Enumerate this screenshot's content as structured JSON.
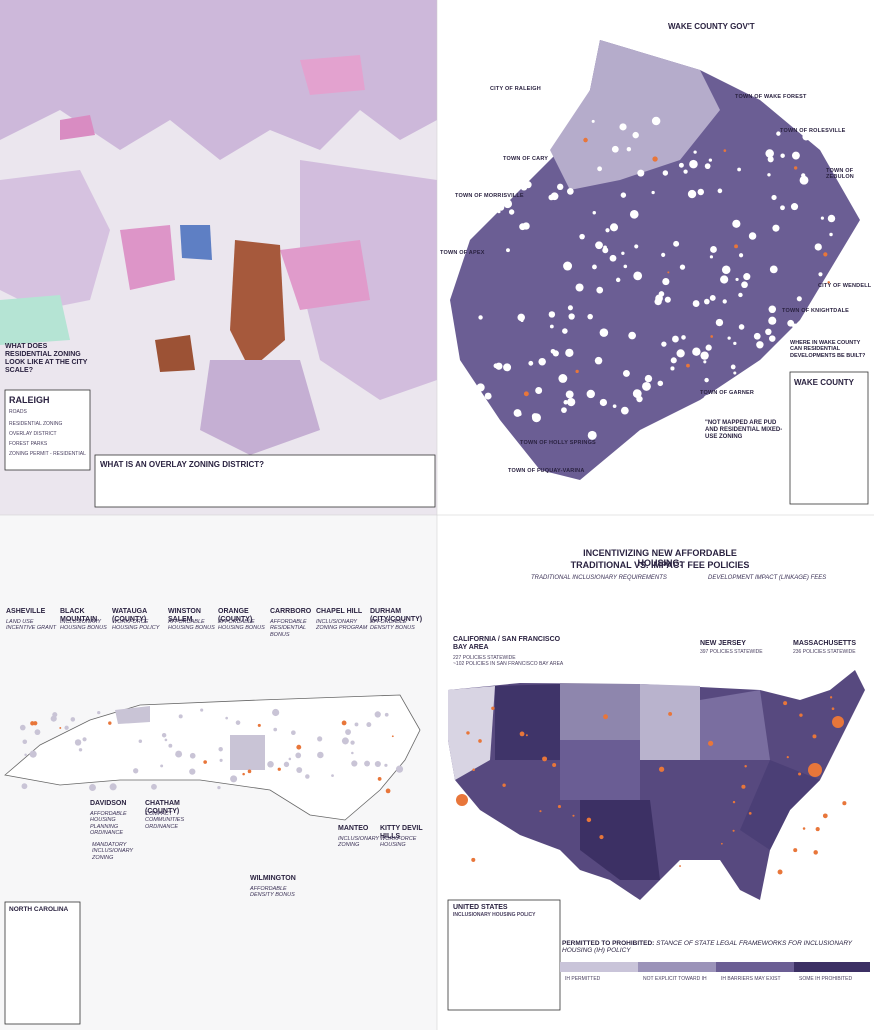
{
  "raleigh": {
    "question": "WHAT DOES RESIDENTIAL ZONING LOOK LIKE AT THE CITY SCALE?",
    "title": "RALEIGH",
    "legend": [
      "ROADS",
      "RESIDENTIAL ZONING",
      "OVERLAY DISTRICT",
      "FOREST PARKS",
      "ZONING PERMIT - RESIDENTIAL"
    ],
    "overlay_heading": "WHAT IS AN OVERLAY ZONING DISTRICT?"
  },
  "wake": {
    "heading": "WAKE COUNTY GOV'T",
    "towns": [
      "CITY OF RALEIGH",
      "TOWN OF WAKE FOREST",
      "TOWN OF ROLESVILLE",
      "TOWN OF ZEBULON",
      "TOWN OF CARY",
      "TOWN OF MORRISVILLE",
      "TOWN OF APEX",
      "CITY OF WENDELL",
      "TOWN OF KNIGHTDALE",
      "TOWN OF GARNER",
      "TOWN OF HOLLY SPRINGS",
      "TOWN OF FUQUAY-VARINA"
    ],
    "note": "\"NOT MAPPED ARE PUD AND RESIDENTIAL MIXED-USE ZONING",
    "question": "WHERE IN WAKE COUNTY CAN RESIDENTIAL DEVELOPMENTS BE BUILT?",
    "title": "WAKE COUNTY"
  },
  "north_carolina": {
    "places": [
      {
        "name": "ASHEVILLE",
        "policy": "LAND USE INCENTIVE GRANT"
      },
      {
        "name": "BLACK MOUNTAIN",
        "policy": "INCLUSIONARY HOUSING BONUS"
      },
      {
        "name": "WATAUGA (COUNTY)",
        "policy": "WORKFORCE HOUSING POLICY"
      },
      {
        "name": "WINSTON SALEM",
        "policy": "AFFORDABLE HOUSING BONUS"
      },
      {
        "name": "ORANGE (COUNTY)",
        "policy": "AFFORDABLE HOUSING BONUS"
      },
      {
        "name": "CARRBORO",
        "policy": "AFFORDABLE RESIDENTIAL BONUS"
      },
      {
        "name": "CHAPEL HILL",
        "policy": "INCLUSIONARY ZONING PROGRAM"
      },
      {
        "name": "DURHAM (CITY/COUNTY)",
        "policy": "AFFORDABLE DENSITY BONUS"
      },
      {
        "name": "DAVIDSON",
        "policy": "AFFORDABLE HOUSING PLANNING ORDINANCE"
      },
      {
        "name": "CHATHAM (COUNTY)",
        "policy": "COMPACT COMMUNITIES ORDINANCE"
      },
      {
        "name": "MANTEO",
        "policy": "INCLUSIONARY ZONING"
      },
      {
        "name": "KITTY DEVIL HILLS",
        "policy": "WORKFORCE HOUSING"
      },
      {
        "name": "WILMINGTON",
        "policy": "AFFORDABLE DENSITY BONUS"
      }
    ],
    "extra_policy": "MANDATORY INCLUSIONARY ZONING",
    "title": "NORTH CAROLINA"
  },
  "united_states": {
    "title": "INCENTIVIZING NEW AFFORDABLE HOUSING:",
    "subtitle": "TRADITIONAL VS. IMPACT FEE POLICIES",
    "traditional": "TRADITIONAL INCLUSIONARY REQUIREMENTS",
    "impact": "DEVELOPMENT IMPACT (LINKAGE) FEES",
    "california": {
      "name": "CALIFORNIA / SAN FRANCISCO BAY AREA",
      "lines": [
        "227 POLICIES STATEWIDE",
        "~102 POLICIES IN SAN FRANCISCO BAY AREA"
      ]
    },
    "new_jersey": {
      "name": "NEW JERSEY",
      "lines": [
        "397 POLICIES STATEWIDE"
      ]
    },
    "massachusetts": {
      "name": "MASSACHUSETTS",
      "lines": [
        "236 POLICIES STATEWIDE"
      ]
    },
    "legend_title": "UNITED STATES",
    "legend_subtitle": "INCLUSIONARY HOUSING POLICY",
    "scale_heading": "PERMITTED TO PROHIBITED:",
    "scale_subheading": "STANCE OF STATE LEGAL FRAMEWORKS FOR INCLUSIONARY HOUSING (IH) POLICY",
    "scale": [
      "IH PERMITTED",
      "NOT EXPLICIT TOWARD IH",
      "IH BARRIERS MAY EXIST",
      "SOME IH PROHIBITED"
    ]
  }
}
